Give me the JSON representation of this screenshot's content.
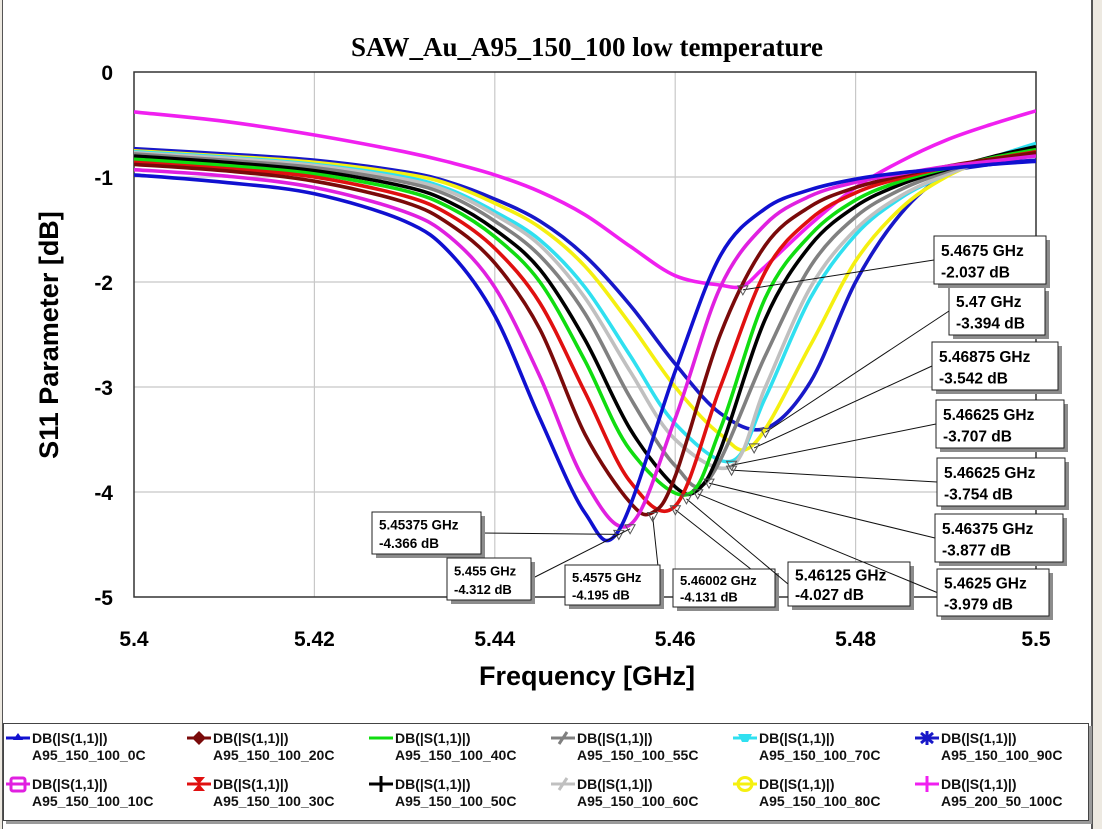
{
  "chart_data": {
    "type": "line",
    "title": "SAW_Au_A95_150_100 low temperature",
    "xlabel": "Frequency [GHz]",
    "ylabel": "S11 Parameter [dB]",
    "xlim": [
      5.4,
      5.5
    ],
    "ylim": [
      -5,
      0
    ],
    "xticks": [
      "5.4",
      "5.42",
      "5.44",
      "5.46",
      "5.48",
      "5.5"
    ],
    "xtick_values": [
      5.4,
      5.42,
      5.44,
      5.46,
      5.48,
      5.5
    ],
    "yticks": [
      "0",
      "-1",
      "-2",
      "-3",
      "-4",
      "-5"
    ],
    "ytick_values": [
      0,
      -1,
      -2,
      -3,
      -4,
      -5
    ],
    "grid": true,
    "legend_position": "bottom",
    "x": [
      5.4,
      5.41,
      5.42,
      5.43,
      5.435,
      5.44,
      5.445,
      5.45,
      5.455,
      5.46,
      5.465,
      5.47,
      5.475,
      5.48,
      5.485,
      5.49,
      5.495,
      5.5
    ],
    "series": [
      {
        "name": "DB(|S(1,1)|)",
        "dataset": "A95_150_100_0C",
        "color": "#1010d0",
        "marker": "triangle-up",
        "values": [
          -0.98,
          -1.05,
          -1.16,
          -1.42,
          -1.72,
          -2.32,
          -3.3,
          -4.2,
          -4.05,
          -2.85,
          -1.75,
          -1.3,
          -1.12,
          -1.02,
          -0.96,
          -0.92,
          -0.88,
          -0.85
        ]
      },
      {
        "name": "DB(|S(1,1)|)",
        "dataset": "A95_150_100_10C",
        "color": "#e020e0",
        "marker": "box",
        "values": [
          -0.93,
          -0.99,
          -1.1,
          -1.33,
          -1.57,
          -2.05,
          -2.9,
          -3.9,
          -4.28,
          -3.3,
          -2.05,
          -1.45,
          -1.18,
          -1.05,
          -0.97,
          -0.9,
          -0.85,
          -0.8
        ]
      },
      {
        "name": "DB(|S(1,1)|)",
        "dataset": "A95_150_100_20C",
        "color": "#7a0a0a",
        "marker": "diamond",
        "values": [
          -0.88,
          -0.94,
          -1.04,
          -1.24,
          -1.45,
          -1.82,
          -2.45,
          -3.45,
          -4.1,
          -3.85,
          -2.5,
          -1.65,
          -1.28,
          -1.1,
          -0.99,
          -0.9,
          -0.83,
          -0.77
        ]
      },
      {
        "name": "DB(|S(1,1)|)",
        "dataset": "A95_150_100_30C",
        "color": "#e01010",
        "marker": "hourglass",
        "values": [
          -0.86,
          -0.92,
          -1.0,
          -1.18,
          -1.36,
          -1.68,
          -2.2,
          -3.05,
          -3.9,
          -4.1,
          -3.0,
          -1.9,
          -1.4,
          -1.15,
          -1.01,
          -0.91,
          -0.83,
          -0.76
        ]
      },
      {
        "name": "DB(|S(1,1)|)",
        "dataset": "A95_150_100_40C",
        "color": "#10dd10",
        "marker": "line",
        "values": [
          -0.83,
          -0.89,
          -0.97,
          -1.13,
          -1.29,
          -1.57,
          -2.0,
          -2.75,
          -3.6,
          -4.0,
          -3.4,
          -2.15,
          -1.55,
          -1.22,
          -1.04,
          -0.92,
          -0.82,
          -0.74
        ]
      },
      {
        "name": "DB(|S(1,1)|)",
        "dataset": "A95_150_100_50C",
        "color": "#000000",
        "marker": "plus",
        "values": [
          -0.8,
          -0.86,
          -0.94,
          -1.09,
          -1.24,
          -1.5,
          -1.88,
          -2.55,
          -3.4,
          -3.95,
          -3.6,
          -2.35,
          -1.65,
          -1.28,
          -1.07,
          -0.93,
          -0.81,
          -0.71
        ]
      },
      {
        "name": "DB(|S(1,1)|)",
        "dataset": "A95_150_100_55C",
        "color": "#808080",
        "marker": "slash",
        "values": [
          -0.78,
          -0.84,
          -0.91,
          -1.05,
          -1.18,
          -1.42,
          -1.75,
          -2.3,
          -3.1,
          -3.75,
          -3.8,
          -2.7,
          -1.85,
          -1.38,
          -1.12,
          -0.95,
          -0.82,
          -0.72
        ]
      },
      {
        "name": "DB(|S(1,1)|)",
        "dataset": "A95_150_100_60C",
        "color": "#c0c0c0",
        "marker": "slash",
        "values": [
          -0.77,
          -0.82,
          -0.89,
          -1.02,
          -1.14,
          -1.36,
          -1.65,
          -2.15,
          -2.85,
          -3.5,
          -3.75,
          -3.0,
          -2.05,
          -1.5,
          -1.18,
          -0.98,
          -0.83,
          -0.72
        ]
      },
      {
        "name": "DB(|S(1,1)|)",
        "dataset": "A95_150_100_70C",
        "color": "#30e0f0",
        "marker": "bowl",
        "values": [
          -0.76,
          -0.81,
          -0.88,
          -1.0,
          -1.12,
          -1.33,
          -1.6,
          -2.05,
          -2.7,
          -3.35,
          -3.7,
          -3.1,
          -2.15,
          -1.55,
          -1.2,
          -0.98,
          -0.82,
          -0.68
        ]
      },
      {
        "name": "DB(|S(1,1)|)",
        "dataset": "A95_150_100_80C",
        "color": "#f5f010",
        "marker": "circle-bar",
        "values": [
          -0.75,
          -0.8,
          -0.86,
          -0.97,
          -1.07,
          -1.25,
          -1.48,
          -1.85,
          -2.4,
          -3.0,
          -3.45,
          -3.5,
          -2.6,
          -1.8,
          -1.3,
          -1.0,
          -0.82,
          -0.7
        ]
      },
      {
        "name": "DB(|S(1,1)|)",
        "dataset": "A95_150_100_90C",
        "color": "#1818c8",
        "marker": "asterisk",
        "values": [
          -0.73,
          -0.78,
          -0.84,
          -0.95,
          -1.05,
          -1.21,
          -1.42,
          -1.75,
          -2.22,
          -2.78,
          -3.25,
          -3.39,
          -2.95,
          -2.0,
          -1.35,
          -0.98,
          -0.88,
          -0.84
        ]
      },
      {
        "name": "DB(|S(1,1)|)",
        "dataset": "A95_200_50_100C",
        "color": "#f020f0",
        "marker": "plus",
        "values": [
          -0.38,
          -0.47,
          -0.6,
          -0.76,
          -0.86,
          -0.98,
          -1.14,
          -1.36,
          -1.66,
          -1.94,
          -2.03,
          -1.85,
          -1.45,
          -1.1,
          -0.85,
          -0.65,
          -0.5,
          -0.37
        ]
      }
    ],
    "annotations": [
      {
        "series": "A95_150_100_0C",
        "x": 5.45375,
        "y": -4.366,
        "label_freq": "5.45375 GHz",
        "label_db": "-4.366 dB"
      },
      {
        "series": "A95_150_100_10C",
        "x": 5.455,
        "y": -4.312,
        "label_freq": "5.455 GHz",
        "label_db": "-4.312 dB"
      },
      {
        "series": "A95_150_100_20C",
        "x": 5.4575,
        "y": -4.195,
        "label_freq": "5.4575 GHz",
        "label_db": "-4.195 dB"
      },
      {
        "series": "A95_150_100_30C",
        "x": 5.46002,
        "y": -4.131,
        "label_freq": "5.46002 GHz",
        "label_db": "-4.131 dB"
      },
      {
        "series": "A95_150_100_40C",
        "x": 5.46125,
        "y": -4.027,
        "label_freq": "5.46125 GHz",
        "label_db": "-4.027 dB"
      },
      {
        "series": "A95_150_100_50C",
        "x": 5.4625,
        "y": -3.979,
        "label_freq": "5.4625 GHz",
        "label_db": "-3.979 dB"
      },
      {
        "series": "A95_150_100_55C",
        "x": 5.46375,
        "y": -3.877,
        "label_freq": "5.46375 GHz",
        "label_db": "-3.877 dB"
      },
      {
        "series": "A95_150_100_60C",
        "x": 5.46625,
        "y": -3.754,
        "label_freq": "5.46625 GHz",
        "label_db": "-3.754 dB"
      },
      {
        "series": "A95_150_100_70C",
        "x": 5.46625,
        "y": -3.707,
        "label_freq": "5.46625 GHz",
        "label_db": "-3.707 dB"
      },
      {
        "series": "A95_150_100_80C",
        "x": 5.46875,
        "y": -3.542,
        "label_freq": "5.46875 GHz",
        "label_db": "-3.542 dB"
      },
      {
        "series": "A95_150_100_90C",
        "x": 5.47,
        "y": -3.394,
        "label_freq": "5.47 GHz",
        "label_db": "-3.394 dB"
      },
      {
        "series": "A95_200_50_100C",
        "x": 5.4675,
        "y": -2.037,
        "label_freq": "5.4675 GHz",
        "label_db": "-2.037 dB"
      }
    ]
  }
}
